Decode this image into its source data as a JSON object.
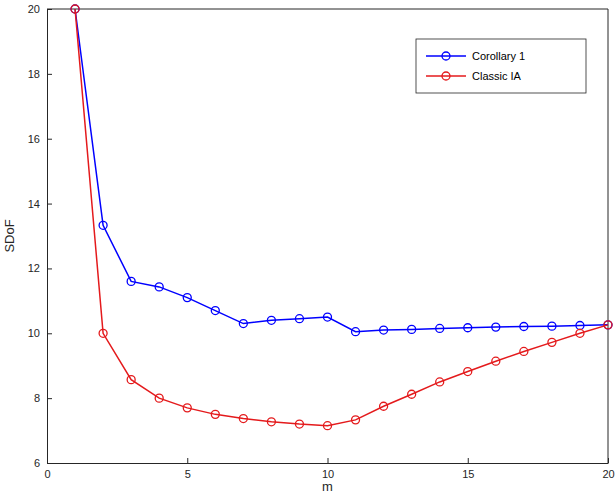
{
  "chart_data": {
    "type": "line",
    "x_label": "m",
    "y_label": "SDoF",
    "x": [
      1,
      2,
      3,
      4,
      5,
      6,
      7,
      8,
      9,
      10,
      11,
      12,
      13,
      14,
      15,
      16,
      17,
      18,
      19,
      20
    ],
    "series": [
      {
        "name": "Corollary 1",
        "color": "#0000ff",
        "marker": "circle",
        "line_style": "solid",
        "values": [
          20,
          13.33,
          11.6,
          11.43,
          11.1,
          10.7,
          10.3,
          10.4,
          10.45,
          10.5,
          10.05,
          10.1,
          10.12,
          10.15,
          10.17,
          10.19,
          10.21,
          10.22,
          10.24,
          10.26
        ]
      },
      {
        "name": "Classic IA",
        "color": "#e41a1c",
        "marker": "circle",
        "line_style": "solid",
        "values": [
          20,
          10,
          8.57,
          8.0,
          7.7,
          7.5,
          7.37,
          7.27,
          7.2,
          7.15,
          7.33,
          7.75,
          8.12,
          8.5,
          8.82,
          9.14,
          9.44,
          9.72,
          10.0,
          10.26
        ]
      }
    ],
    "xlim": [
      0,
      20
    ],
    "xticks": [
      0,
      5,
      10,
      15,
      20
    ],
    "ylim": [
      6,
      20
    ],
    "yticks": [
      6,
      8,
      10,
      12,
      14,
      16,
      18,
      20
    ],
    "grid": false,
    "legend": "northeast"
  }
}
